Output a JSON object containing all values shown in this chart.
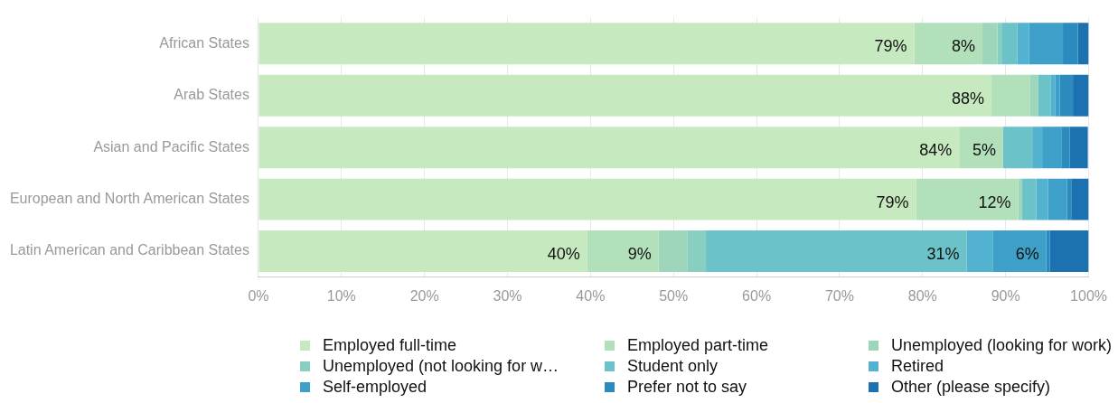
{
  "chart_data": {
    "type": "bar",
    "orientation": "horizontal",
    "stacked": true,
    "categories": [
      "African States",
      "Arab States",
      "Asian and Pacific States",
      "European and North American States",
      "Latin American and Caribbean States"
    ],
    "series": [
      {
        "name": "Employed full-time",
        "color": "#c7e9c0",
        "values": [
          79,
          88.3,
          84.4,
          79.2,
          39.6
        ],
        "value_labels": [
          "79%",
          "88%",
          "84%",
          "79%",
          "40%"
        ]
      },
      {
        "name": "Employed part-time",
        "color": "#b2e0bb",
        "values": [
          8.2,
          4.6,
          5.3,
          12.3,
          8.6
        ],
        "value_labels": [
          "8%",
          null,
          "5%",
          "12%",
          "9%"
        ]
      },
      {
        "name": "Unemployed (looking for work)",
        "color": "#9dd6bb",
        "values": [
          1.8,
          1,
          0,
          0.5,
          3.5
        ]
      },
      {
        "name": "Unemployed (not looking for w…",
        "color": "#88cfc1",
        "values": [
          0.6,
          0,
          0,
          0,
          2.2
        ]
      },
      {
        "name": "Student only",
        "color": "#6bc2c8",
        "values": [
          1.8,
          1.5,
          3.6,
          1.7,
          31.4
        ],
        "value_labels": [
          null,
          null,
          null,
          null,
          "31%"
        ]
      },
      {
        "name": "Retired",
        "color": "#52b2cf",
        "values": [
          1.4,
          0.6,
          1.1,
          1.4,
          3.2
        ]
      },
      {
        "name": "Self-employed",
        "color": "#3e9fc9",
        "values": [
          4.1,
          0.5,
          2.3,
          2.3,
          6.4
        ],
        "value_labels": [
          null,
          null,
          null,
          null,
          "6%"
        ]
      },
      {
        "name": "Prefer not to say",
        "color": "#2b8bbf",
        "values": [
          1.8,
          1.6,
          1,
          0.5,
          0.4
        ]
      },
      {
        "name": "Other (please specify)",
        "color": "#1c72b0",
        "values": [
          1.3,
          1.9,
          2.2,
          2.1,
          4.7
        ]
      }
    ],
    "xlim": [
      0,
      100
    ],
    "xticks": [
      {
        "value": 0,
        "label": "0%"
      },
      {
        "value": 10,
        "label": "10%"
      },
      {
        "value": 20,
        "label": "20%"
      },
      {
        "value": 30,
        "label": "30%"
      },
      {
        "value": 40,
        "label": "40%"
      },
      {
        "value": 50,
        "label": "50%"
      },
      {
        "value": 60,
        "label": "60%"
      },
      {
        "value": 70,
        "label": "70%"
      },
      {
        "value": 80,
        "label": "80%"
      },
      {
        "value": 90,
        "label": "90%"
      },
      {
        "value": 100,
        "label": "100%"
      }
    ],
    "grid": "x",
    "legend": "bottom"
  }
}
